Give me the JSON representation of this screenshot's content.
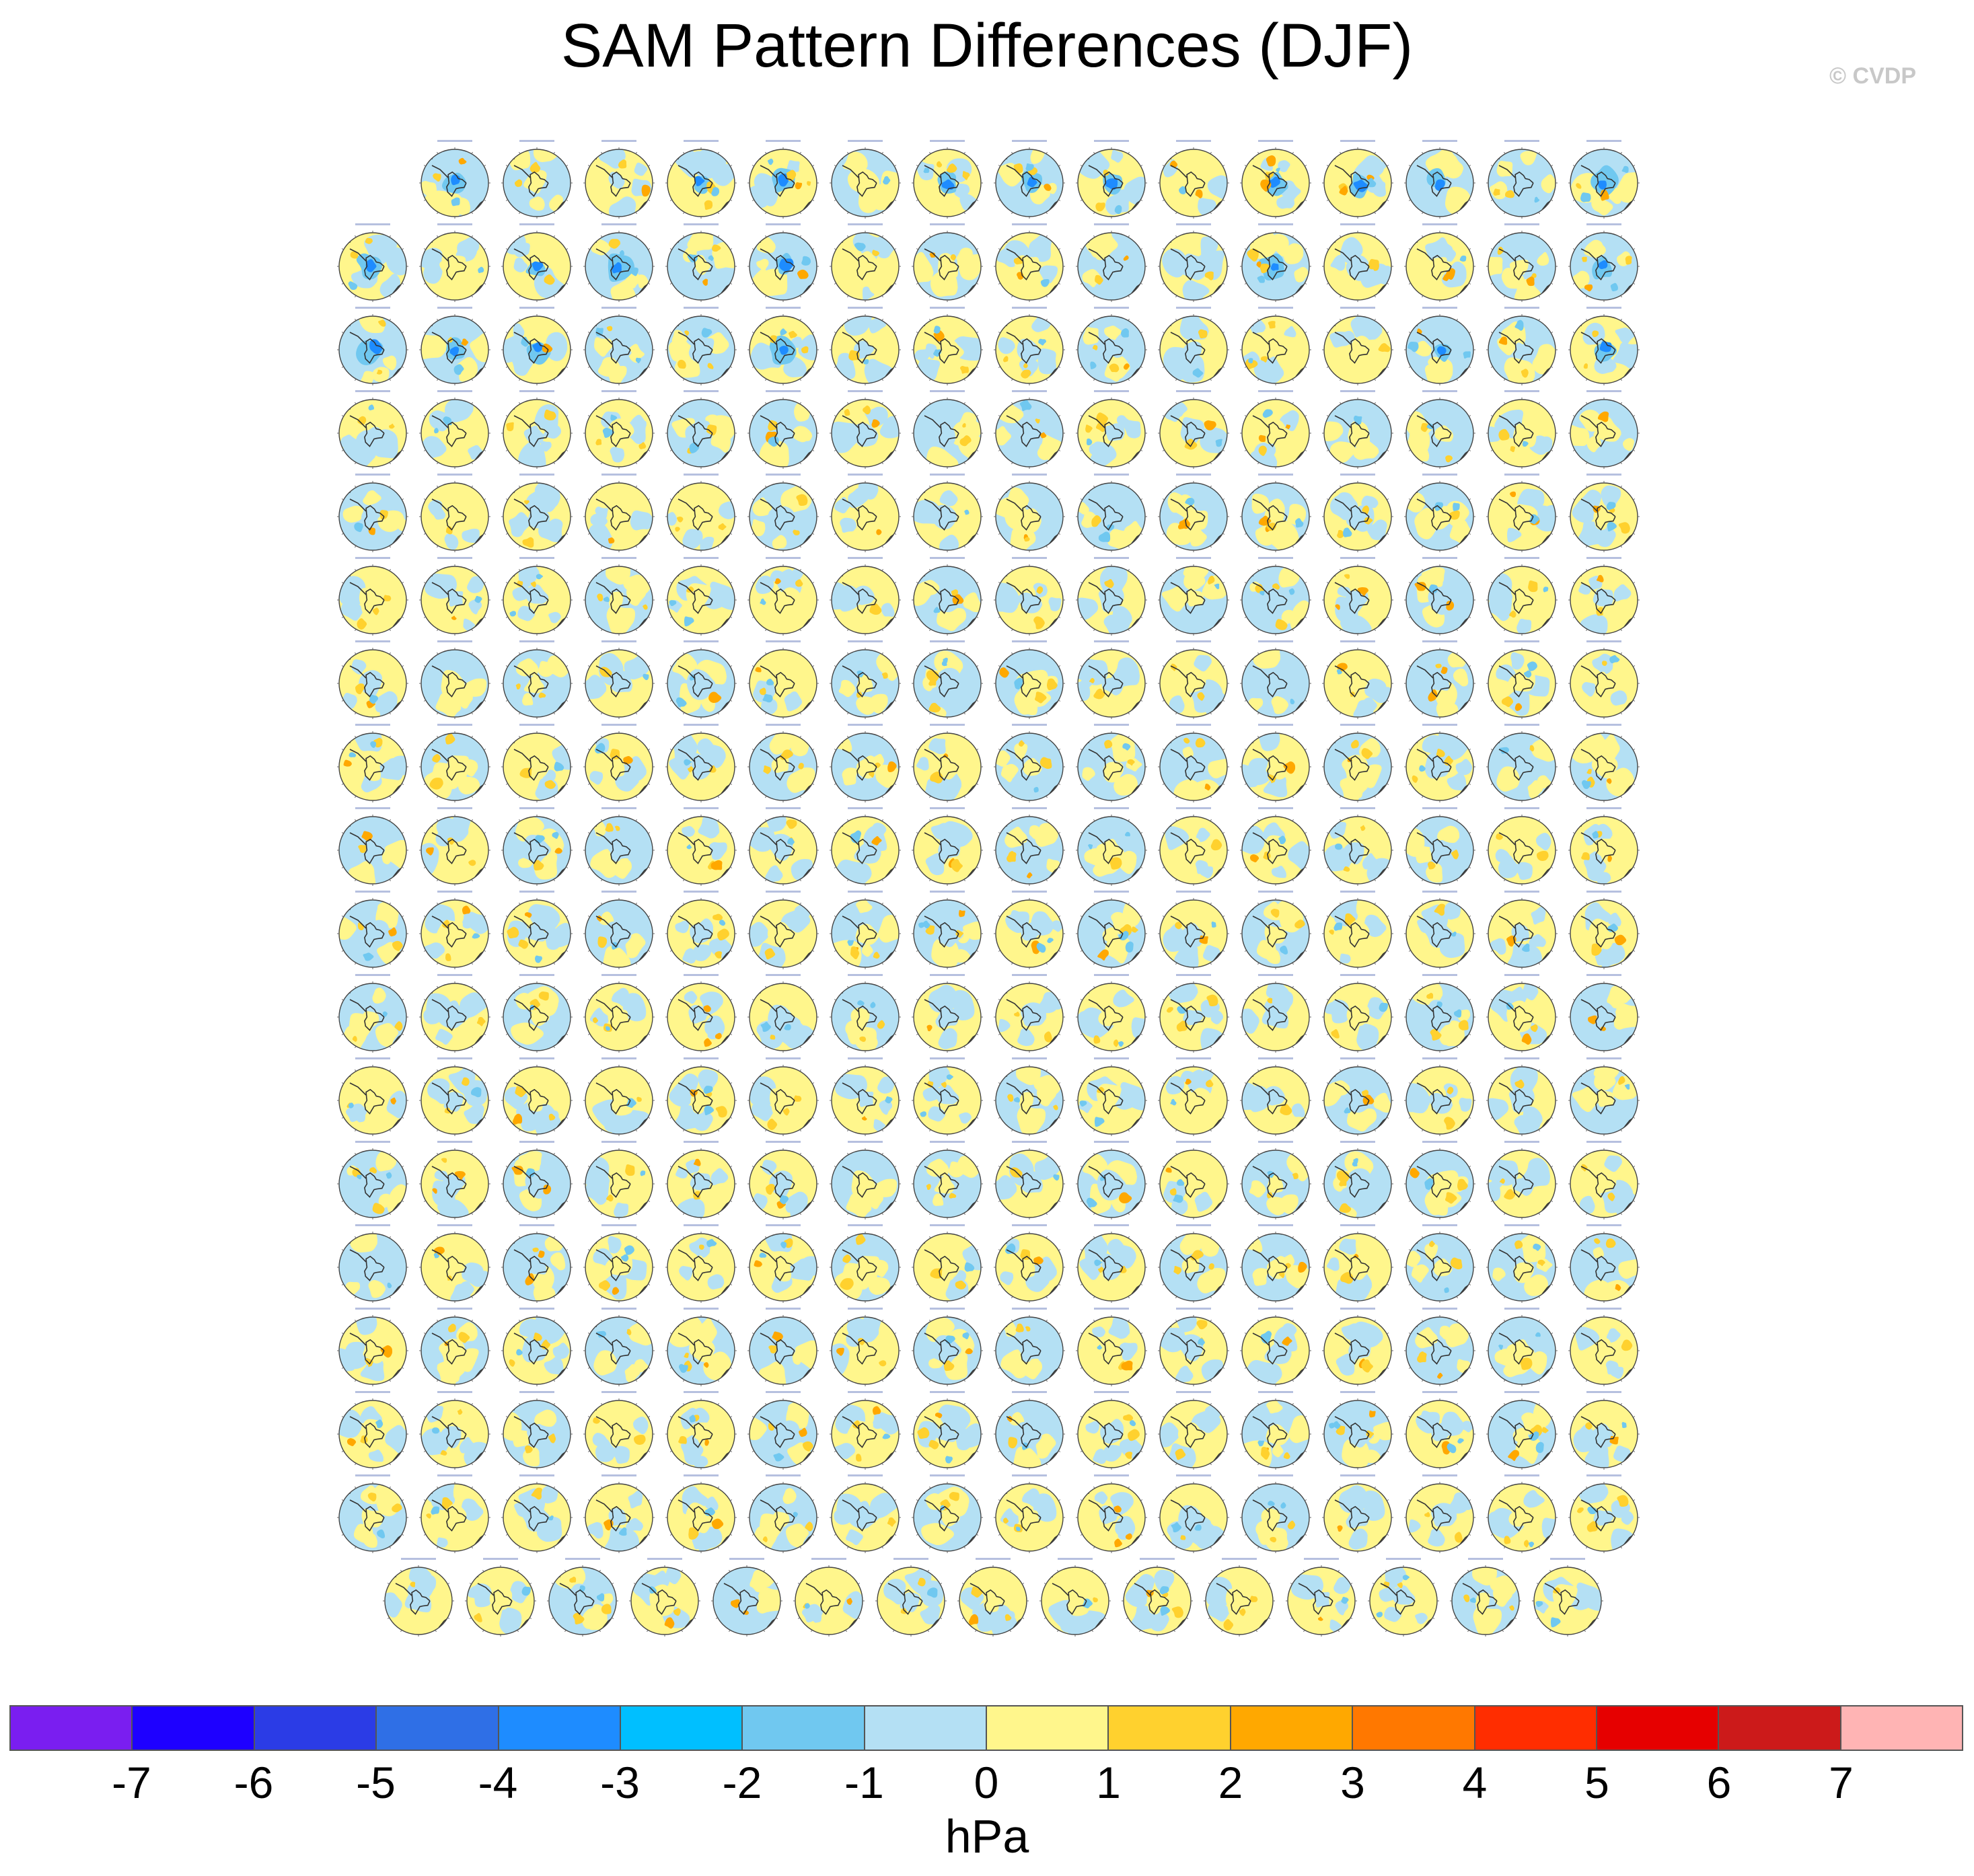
{
  "title": "SAM Pattern Differences (DJF)",
  "watermark": "© CVDP",
  "chart_data": {
    "type": "heatmap",
    "title": "SAM Pattern Differences (DJF)",
    "description_kind": "small-multiples polar stereographic maps (Southern Hemisphere)",
    "panel_rows": [
      15,
      16,
      16,
      16,
      16,
      16,
      16,
      16,
      16,
      16,
      16,
      16,
      16,
      16,
      16,
      16,
      16,
      15
    ],
    "total_panels": 286,
    "colorbar": {
      "label": "hPa",
      "ticks": [
        "-7",
        "-6",
        "-5",
        "-4",
        "-3",
        "-2",
        "-1",
        "0",
        "1",
        "2",
        "3",
        "4",
        "5",
        "6",
        "7"
      ],
      "colors": [
        "#7a1ef0",
        "#1e00ff",
        "#2b3ce6",
        "#2f6fe6",
        "#1e8cff",
        "#00bfff",
        "#70c8f0",
        "#b4e0f4",
        "#fff68c",
        "#ffd12e",
        "#ffa800",
        "#ff7800",
        "#ff2d00",
        "#e60000",
        "#cc1a1a",
        "#ffb4b4"
      ]
    },
    "map_colors": {
      "negative_weak": "#b4e0f4",
      "negative_mid": "#70c8f0",
      "negative_strong": "#1e8cff",
      "positive_weak": "#fff68c",
      "positive_mid": "#ffd12e",
      "positive_strong": "#ffa800",
      "coastline": "#333333",
      "panel_title": "#7a8cc4"
    }
  }
}
